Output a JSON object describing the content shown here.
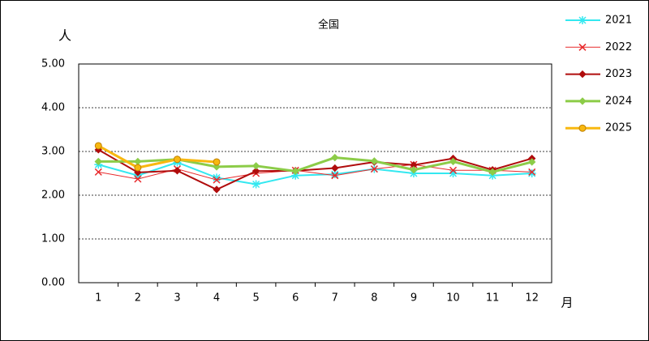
{
  "chart_data": {
    "type": "line",
    "title": "全国",
    "y_label": "人",
    "x_label": "月",
    "categories": [
      "1",
      "2",
      "3",
      "4",
      "5",
      "6",
      "7",
      "8",
      "9",
      "10",
      "11",
      "12"
    ],
    "ylim": [
      0,
      5
    ],
    "yticks": [
      {
        "value": 0,
        "label": "0.00"
      },
      {
        "value": 1,
        "label": "1.00"
      },
      {
        "value": 2,
        "label": "2.00"
      },
      {
        "value": 3,
        "label": "3.00"
      },
      {
        "value": 4,
        "label": "4.00"
      },
      {
        "value": 5,
        "label": "5.00"
      }
    ],
    "grid": true,
    "legend": "right",
    "series": [
      {
        "name": "2021",
        "color": "#33e8f0",
        "marker": "asterisk",
        "width": 2,
        "values": [
          2.7,
          2.45,
          2.75,
          2.4,
          2.25,
          2.45,
          2.48,
          2.6,
          2.5,
          2.5,
          2.45,
          2.5
        ]
      },
      {
        "name": "2022",
        "color": "#e8282a",
        "marker": "x",
        "width": 1,
        "values": [
          2.53,
          2.37,
          2.6,
          2.35,
          2.5,
          2.57,
          2.45,
          2.6,
          2.7,
          2.57,
          2.57,
          2.53
        ]
      },
      {
        "name": "2023",
        "color": "#b00c0c",
        "marker": "diamond",
        "width": 2,
        "values": [
          3.04,
          2.52,
          2.56,
          2.13,
          2.55,
          2.56,
          2.62,
          2.76,
          2.69,
          2.84,
          2.58,
          2.84
        ]
      },
      {
        "name": "2024",
        "color": "#8ccc48",
        "marker": "diamond",
        "width": 3,
        "values": [
          2.77,
          2.77,
          2.82,
          2.65,
          2.67,
          2.55,
          2.86,
          2.78,
          2.58,
          2.77,
          2.53,
          2.76
        ]
      },
      {
        "name": "2025",
        "color": "#f8b810",
        "marker": "circle",
        "width": 3,
        "values": [
          3.13,
          2.63,
          2.82,
          2.76,
          null,
          null,
          null,
          null,
          null,
          null,
          null,
          null
        ]
      }
    ]
  }
}
